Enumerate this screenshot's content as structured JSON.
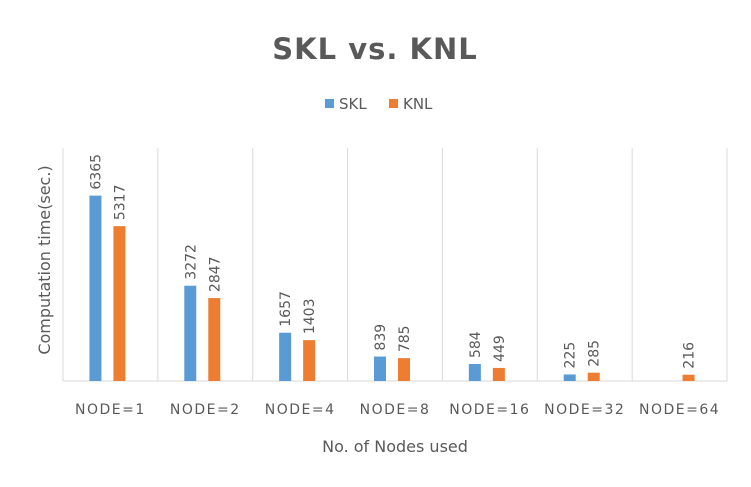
{
  "chart_data": {
    "type": "bar",
    "title": "SKL vs. KNL",
    "xlabel": "No. of Nodes used",
    "ylabel": "Computation time(sec.)",
    "categories": [
      "NODE=1",
      "NODE=2",
      "NODE=4",
      "NODE=8",
      "NODE=16",
      "NODE=32",
      "NODE=64"
    ],
    "series": [
      {
        "name": "SKL",
        "color": "#5B9BD5",
        "values": [
          6365,
          3272,
          1657,
          839,
          584,
          225,
          null
        ]
      },
      {
        "name": "KNL",
        "color": "#ED7D31",
        "values": [
          5317,
          2847,
          1403,
          785,
          449,
          285,
          216
        ]
      }
    ],
    "ylim": [
      0,
      8000
    ],
    "grid": "vertical",
    "legend": "top-center",
    "data_labels": true
  }
}
